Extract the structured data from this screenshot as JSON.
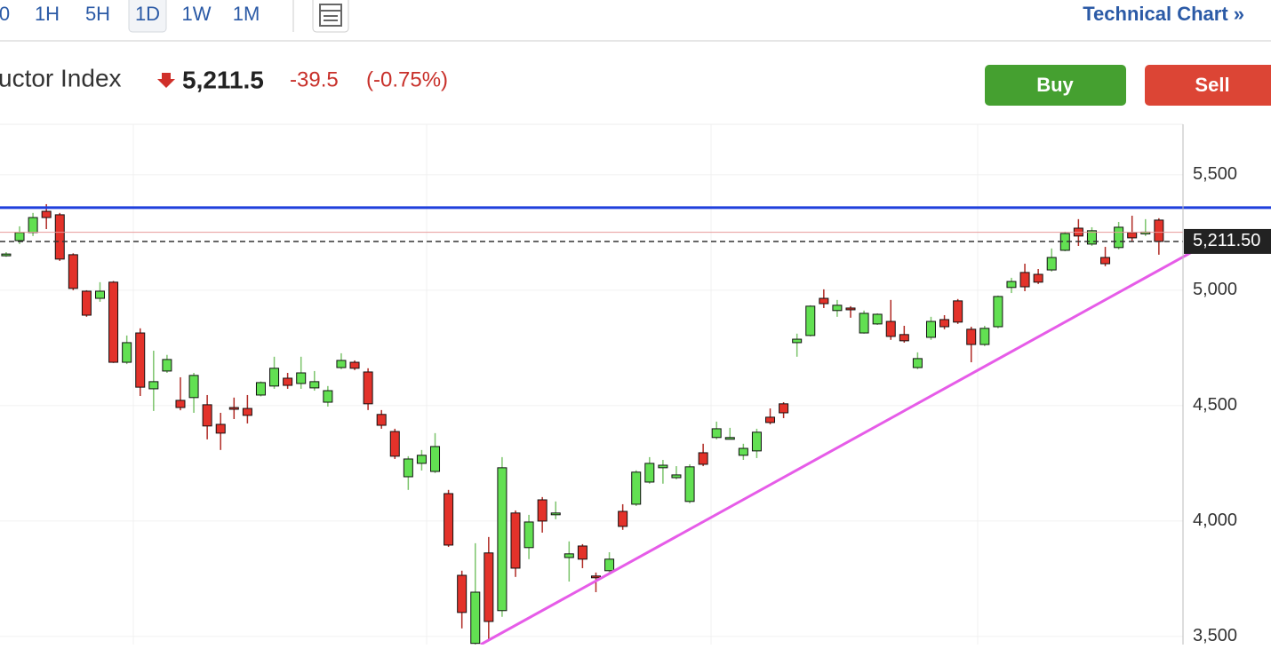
{
  "toolbar": {
    "timeframes": [
      "0",
      "1H",
      "5H",
      "1D",
      "1W",
      "1M"
    ],
    "selected_index": 3,
    "link": "Technical Chart »"
  },
  "header": {
    "name": "uctor Index",
    "price": "5,211.5",
    "change": "-39.5",
    "change_pct": "(-0.75%)"
  },
  "buttons": {
    "buy": "Buy",
    "sell": "Sell"
  },
  "chart_data": {
    "type": "candlestick",
    "open": [
      5150,
      5215,
      5250,
      5342,
      5327,
      5154,
      4996,
      4965,
      5035,
      4688,
      4815,
      4573,
      4650,
      4523,
      4535,
      4504,
      4419,
      4492,
      4488,
      4546,
      4585,
      4619,
      4596,
      4577,
      4515,
      4665,
      4688,
      4646,
      4462,
      4388,
      4192,
      4250,
      4215,
      4119,
      3765,
      3470,
      3862,
      3612,
      4035,
      3885,
      4092,
      4031,
      3842,
      3892,
      3762,
      3785,
      4042,
      4073,
      4169,
      4231,
      4188,
      4085,
      4296,
      4362,
      4358,
      4285,
      4304,
      4450,
      4508,
      4773,
      4804,
      4965,
      4912,
      4923,
      4815,
      4854,
      4865,
      4808,
      4665,
      4796,
      4873,
      4954,
      4831,
      4765,
      4842,
      5012,
      5077,
      5069,
      5088,
      5173,
      5269,
      5200,
      5142,
      5185,
      5250,
      5248,
      5304
    ],
    "high": [
      5165,
      5277,
      5335,
      5373,
      5335,
      5160,
      5000,
      5035,
      5040,
      4804,
      4835,
      4738,
      4720,
      4623,
      4642,
      4546,
      4469,
      4535,
      4546,
      4605,
      4712,
      4642,
      4712,
      4650,
      4585,
      4727,
      4696,
      4662,
      4481,
      4400,
      4281,
      4308,
      4381,
      4135,
      3785,
      3904,
      3931,
      4277,
      4046,
      4027,
      4104,
      4085,
      3912,
      3900,
      3777,
      3865,
      4073,
      4220,
      4277,
      4265,
      4238,
      4246,
      4335,
      4431,
      4404,
      4335,
      4400,
      4488,
      4515,
      4812,
      4935,
      5004,
      4958,
      4931,
      4912,
      4900,
      4958,
      4846,
      4731,
      4885,
      4892,
      4962,
      4842,
      4846,
      4977,
      5054,
      5115,
      5092,
      5181,
      5254,
      5308,
      5273,
      5188,
      5296,
      5323,
      5308,
      5312
    ],
    "low": [
      5145,
      5200,
      5235,
      5265,
      5127,
      5000,
      4885,
      4950,
      4685,
      4680,
      4542,
      4477,
      4642,
      4480,
      4469,
      4354,
      4308,
      4442,
      4423,
      4540,
      4573,
      4573,
      4573,
      4565,
      4496,
      4658,
      4654,
      4481,
      4400,
      4269,
      4135,
      4219,
      4208,
      3888,
      3535,
      3450,
      3488,
      3585,
      3758,
      3835,
      3950,
      4008,
      3738,
      3796,
      3692,
      3777,
      3962,
      4065,
      4162,
      4162,
      4181,
      4077,
      4238,
      4354,
      4354,
      4265,
      4273,
      4419,
      4446,
      4712,
      4800,
      4923,
      4885,
      4881,
      4812,
      4850,
      4785,
      4773,
      4658,
      4785,
      4831,
      4854,
      4688,
      4758,
      4835,
      4988,
      4996,
      5027,
      5081,
      5169,
      5192,
      5192,
      5104,
      5177,
      5212,
      5235,
      5154
    ],
    "close": [
      5157,
      5250,
      5315,
      5315,
      5135,
      5008,
      4892,
      4996,
      4688,
      4773,
      4580,
      4604,
      4700,
      4492,
      4631,
      4412,
      4381,
      4488,
      4458,
      4600,
      4662,
      4588,
      4642,
      4604,
      4565,
      4696,
      4662,
      4508,
      4415,
      4281,
      4269,
      4285,
      4323,
      3896,
      3604,
      3692,
      3565,
      4231,
      3796,
      3996,
      4000,
      4035,
      3858,
      3835,
      3758,
      3835,
      3977,
      4212,
      4250,
      4242,
      4200,
      4235,
      4246,
      4400,
      4362,
      4315,
      4385,
      4427,
      4469,
      4788,
      4931,
      4942,
      4935,
      4919,
      4900,
      4896,
      4800,
      4781,
      4704,
      4865,
      4842,
      4862,
      4765,
      4835,
      4973,
      5038,
      5015,
      5035,
      5142,
      5246,
      5235,
      5258,
      5115,
      5273,
      5227,
      5252,
      5211.5
    ],
    "up_color": "#62e052",
    "down_color": "#e3322a",
    "xlim": [
      -0.46,
      87.8
    ],
    "ylim": [
      3465,
      5719
    ],
    "yticks": [
      {
        "value": 3500,
        "label": "3,500"
      },
      {
        "value": 4000,
        "label": "4,000"
      },
      {
        "value": 4500,
        "label": "4,500"
      },
      {
        "value": 5000,
        "label": "5,000"
      },
      {
        "value": 5500,
        "label": "5,500"
      }
    ],
    "grid": true,
    "resistance": {
      "value": 5358,
      "color": "#1f3fdc"
    },
    "trendline": {
      "x": [
        35.4,
        91.1
      ],
      "values": [
        3465,
        5250
      ],
      "color": "#e65ce8"
    },
    "prev_close": {
      "value": 5251,
      "color": "#e89a9a"
    },
    "last_price": {
      "value": 5211.5,
      "label": "5,211.50"
    }
  }
}
